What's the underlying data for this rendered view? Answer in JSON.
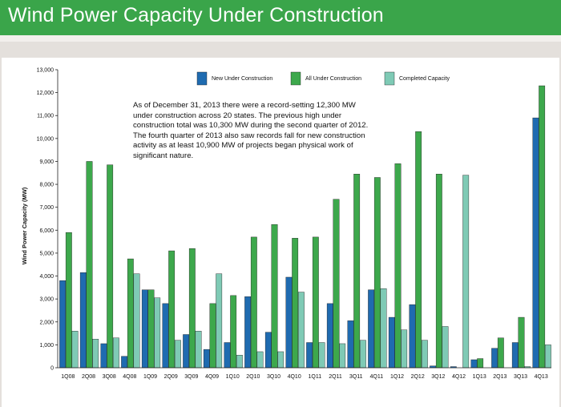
{
  "header": {
    "title": "Wind Power Capacity Under Construction"
  },
  "colors": {
    "banner": "#3aa54a",
    "new": "#1f6bb0",
    "all": "#3da84c",
    "completed": "#7fcab5"
  },
  "chart_data": {
    "type": "bar",
    "title": "Wind Power Capacity Under Construction",
    "xlabel": "",
    "ylabel": "Wind Power Capacity (MW)",
    "ylim": [
      0,
      13000
    ],
    "yticks": [
      "0",
      "1,000",
      "2,000",
      "3,000",
      "4,000",
      "5,000",
      "6,000",
      "7,000",
      "8,000",
      "9,000",
      "10,000",
      "11,000",
      "12,000",
      "13,000"
    ],
    "grid": false,
    "legend": "top",
    "categories": [
      "1Q08",
      "2Q08",
      "3Q08",
      "4Q08",
      "1Q09",
      "2Q09",
      "3Q09",
      "4Q09",
      "1Q10",
      "2Q10",
      "3Q10",
      "4Q10",
      "1Q11",
      "2Q11",
      "3Q11",
      "4Q11",
      "1Q12",
      "2Q12",
      "3Q12",
      "4Q12",
      "1Q13",
      "2Q13",
      "3Q13",
      "4Q13"
    ],
    "series": [
      {
        "name": "New Under Construction",
        "color": "#1f6bb0",
        "values": [
          3800,
          4150,
          1050,
          500,
          3400,
          2800,
          1450,
          800,
          1100,
          3100,
          1550,
          3950,
          1100,
          2800,
          2050,
          3400,
          2200,
          2750,
          80,
          50,
          350,
          850,
          1100,
          10900
        ]
      },
      {
        "name": "All Under Construction",
        "color": "#3da84c",
        "values": [
          5900,
          9000,
          8850,
          4750,
          3400,
          5100,
          5200,
          2800,
          3150,
          5700,
          6250,
          5650,
          5700,
          7350,
          8450,
          8300,
          8900,
          10300,
          8450,
          0,
          400,
          1300,
          2200,
          12300
        ]
      },
      {
        "name": "Completed Capacity",
        "color": "#7fcab5",
        "values": [
          1600,
          1250,
          1300,
          4100,
          3050,
          1200,
          1600,
          4100,
          550,
          700,
          700,
          3300,
          1100,
          1050,
          1200,
          3450,
          1650,
          1200,
          1800,
          8400,
          0,
          0,
          50,
          1000
        ]
      }
    ],
    "annotation": "As of December 31, 2013 there were a record-setting 12,300 MW under construction across 20 states. The previous high under construction total was 10,300 MW during the second quarter of 2012. The fourth quarter of 2013 also saw records fall for new construction activity as at least 10,900 MW of projects began physical work of significant nature."
  }
}
